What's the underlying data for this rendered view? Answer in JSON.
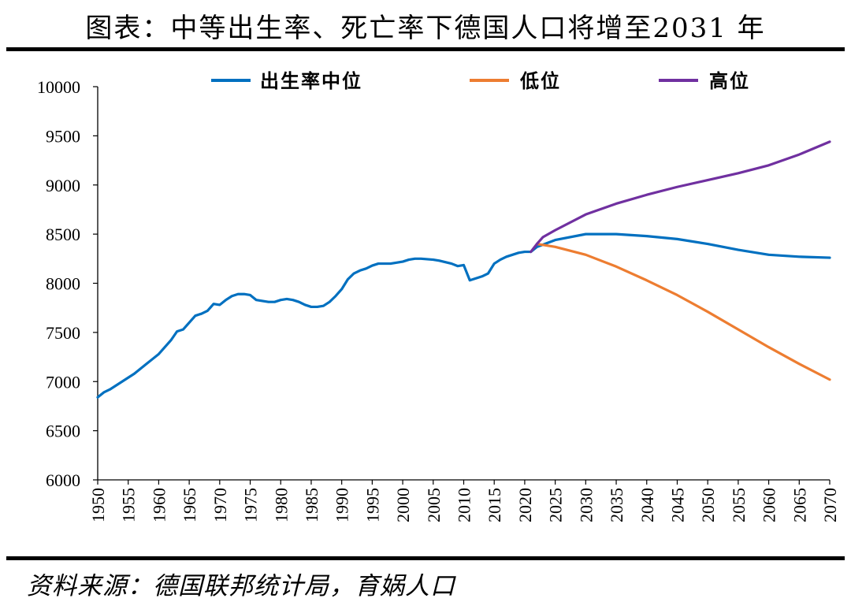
{
  "header": {
    "title": "图表：中等出生率、死亡率下德国人口将增至2031 年"
  },
  "footer": {
    "source": "资料来源：德国联邦统计局，育娲人口"
  },
  "colors": {
    "medium": "#0070C0",
    "low": "#ED7D31",
    "high": "#7030A0",
    "axis": "#000000"
  },
  "chart_data": {
    "type": "line",
    "title": "图表：中等出生率、死亡率下德国人口将增至2031 年",
    "xlabel": "",
    "ylabel": "",
    "xlim": [
      1950,
      2070
    ],
    "ylim": [
      6000,
      10000
    ],
    "yticks": [
      6000,
      6500,
      7000,
      7500,
      8000,
      8500,
      9000,
      9500,
      10000
    ],
    "xticks": [
      1950,
      1955,
      1960,
      1965,
      1970,
      1975,
      1980,
      1985,
      1990,
      1995,
      2000,
      2005,
      2010,
      2015,
      2020,
      2025,
      2030,
      2035,
      2040,
      2045,
      2050,
      2055,
      2060,
      2065,
      2070
    ],
    "legend_position": "top",
    "grid": false,
    "series": [
      {
        "name": "出生率中位",
        "color": "#0070C0",
        "x": [
          1950,
          1951,
          1952,
          1953,
          1954,
          1955,
          1956,
          1957,
          1958,
          1959,
          1960,
          1961,
          1962,
          1963,
          1964,
          1965,
          1966,
          1967,
          1968,
          1969,
          1970,
          1971,
          1972,
          1973,
          1974,
          1975,
          1976,
          1977,
          1978,
          1979,
          1980,
          1981,
          1982,
          1983,
          1984,
          1985,
          1986,
          1987,
          1988,
          1989,
          1990,
          1991,
          1992,
          1993,
          1994,
          1995,
          1996,
          1997,
          1998,
          1999,
          2000,
          2001,
          2002,
          2003,
          2004,
          2005,
          2006,
          2007,
          2008,
          2009,
          2010,
          2011,
          2012,
          2013,
          2014,
          2015,
          2016,
          2017,
          2018,
          2019,
          2020,
          2021,
          2022,
          2025,
          2030,
          2035,
          2040,
          2045,
          2050,
          2055,
          2060,
          2065,
          2070
        ],
        "values": [
          6840,
          6890,
          6920,
          6960,
          7000,
          7040,
          7080,
          7130,
          7180,
          7230,
          7280,
          7350,
          7420,
          7510,
          7530,
          7600,
          7670,
          7690,
          7720,
          7790,
          7780,
          7830,
          7870,
          7890,
          7890,
          7880,
          7830,
          7820,
          7810,
          7810,
          7830,
          7840,
          7830,
          7810,
          7780,
          7760,
          7760,
          7770,
          7810,
          7870,
          7940,
          8040,
          8100,
          8130,
          8150,
          8180,
          8200,
          8200,
          8200,
          8210,
          8220,
          8240,
          8250,
          8250,
          8245,
          8240,
          8230,
          8215,
          8200,
          8175,
          8185,
          8030,
          8050,
          8070,
          8100,
          8200,
          8240,
          8270,
          8290,
          8310,
          8320,
          8320,
          8370,
          8440,
          8500,
          8500,
          8480,
          8450,
          8400,
          8340,
          8290,
          8270,
          8260
        ]
      },
      {
        "name": "低位",
        "color": "#ED7D31",
        "x": [
          2022,
          2025,
          2030,
          2035,
          2040,
          2045,
          2050,
          2055,
          2060,
          2065,
          2070
        ],
        "values": [
          8400,
          8370,
          8290,
          8170,
          8030,
          7880,
          7710,
          7530,
          7350,
          7180,
          7020
        ]
      },
      {
        "name": "高位",
        "color": "#7030A0",
        "x": [
          2021,
          2022,
          2023,
          2025,
          2030,
          2035,
          2040,
          2045,
          2050,
          2055,
          2060,
          2065,
          2070
        ],
        "values": [
          8320,
          8400,
          8470,
          8540,
          8700,
          8810,
          8900,
          8980,
          9050,
          9120,
          9200,
          9310,
          9440
        ]
      }
    ]
  }
}
